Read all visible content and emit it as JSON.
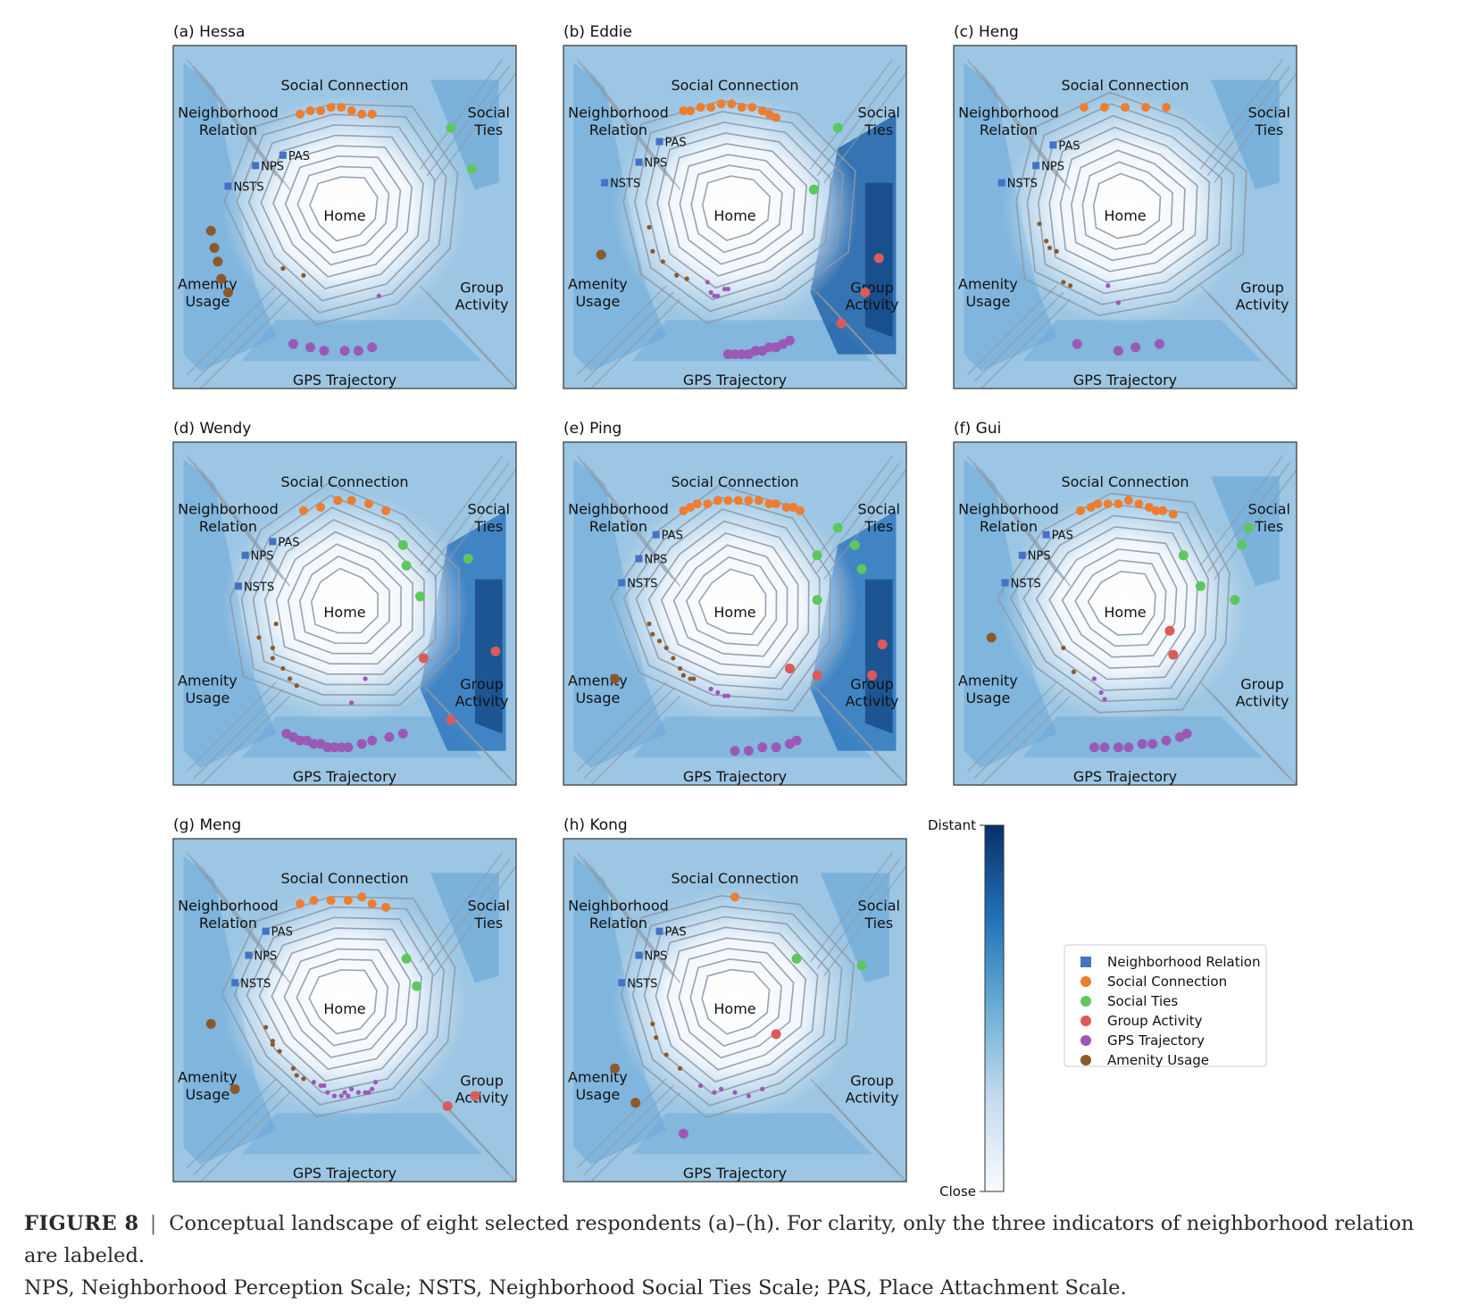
{
  "figure": {
    "label": "FIGURE 8",
    "separator": "|",
    "caption_line1": "Conceptual landscape of eight selected respondents (a)–(h). For clarity, only the three indicators of neighborhood relation are labeled.",
    "caption_line2": "NPS, Neighborhood Perception Scale; NSTS, Neighborhood Social Ties Scale; PAS, Place Attachment Scale."
  },
  "colors": {
    "Neighborhood Relation": "#4472c4",
    "Social Connection": "#ed7d31",
    "Social Ties": "#5cc85c",
    "Group Activity": "#dc5a5a",
    "GPS Trajectory": "#9b59b6",
    "Amenity Usage": "#8b5a2b"
  },
  "common_labels": {
    "social_connection": "Social Connection",
    "neighborhood_relation": [
      "Neighborhood",
      "Relation"
    ],
    "social_ties": [
      "Social",
      "Ties"
    ],
    "home": "Home",
    "amenity_usage": [
      "Amenity",
      "Usage"
    ],
    "group_activity": [
      "Group",
      "Activity"
    ],
    "gps_trajectory": "GPS Trajectory",
    "indicators": [
      "PAS",
      "NPS",
      "NSTS"
    ]
  },
  "colorbar": {
    "top_label": "Distant",
    "bottom_label": "Close",
    "colormap": [
      "#f7fbff",
      "#c6dbef",
      "#6baed6",
      "#2171b5",
      "#08306b"
    ]
  },
  "legend": [
    {
      "label": "Neighborhood Relation",
      "marker": "square"
    },
    {
      "label": "Social Connection",
      "marker": "circle"
    },
    {
      "label": "Social Ties",
      "marker": "circle"
    },
    {
      "label": "Group Activity",
      "marker": "circle"
    },
    {
      "label": "GPS Trajectory",
      "marker": "circle"
    },
    {
      "label": "Amenity Usage",
      "marker": "circle"
    }
  ],
  "chart_data": [
    {
      "type": "heatmap",
      "title": "(a) Hessa",
      "points": {
        "Social Connection": [
          [
            37,
            80
          ],
          [
            40,
            81
          ],
          [
            43,
            81
          ],
          [
            46,
            82
          ],
          [
            49,
            82
          ],
          [
            52,
            81
          ],
          [
            55,
            80
          ],
          [
            58,
            80
          ]
        ],
        "Social Ties": [
          [
            81,
            76
          ],
          [
            87,
            64
          ]
        ],
        "Amenity Usage": [
          [
            11,
            46
          ],
          [
            12,
            41
          ],
          [
            13,
            37
          ],
          [
            14,
            32
          ],
          [
            16,
            28
          ]
        ],
        "GPS Trajectory": [
          [
            35,
            13
          ],
          [
            40,
            12
          ],
          [
            44,
            11
          ],
          [
            50,
            11
          ],
          [
            54,
            11
          ],
          [
            58,
            12
          ]
        ],
        "Group Activity": [],
        "Inner Brown": [
          [
            32,
            35
          ],
          [
            38,
            33
          ]
        ],
        "Inner Purple": [
          [
            60,
            27
          ]
        ]
      },
      "indicators": {
        "PAS": [
          32,
          68
        ],
        "NPS": [
          24,
          65
        ],
        "NSTS": [
          16,
          59
        ]
      }
    },
    {
      "type": "heatmap",
      "title": "(b) Eddie",
      "points": {
        "Social Connection": [
          [
            35,
            81
          ],
          [
            37,
            81
          ],
          [
            40,
            82
          ],
          [
            43,
            82
          ],
          [
            46,
            83
          ],
          [
            49,
            83
          ],
          [
            52,
            82
          ],
          [
            55,
            82
          ],
          [
            58,
            81
          ],
          [
            60,
            80
          ],
          [
            62,
            79
          ]
        ],
        "Social Ties": [
          [
            80,
            76
          ],
          [
            73,
            58
          ]
        ],
        "Amenity Usage": [
          [
            11,
            39
          ]
        ],
        "GPS Trajectory": [
          [
            48,
            10
          ],
          [
            50,
            10
          ],
          [
            52,
            10
          ],
          [
            54,
            10
          ],
          [
            56,
            11
          ],
          [
            58,
            11
          ],
          [
            60,
            12
          ],
          [
            62,
            12
          ],
          [
            64,
            13
          ],
          [
            66,
            14
          ]
        ],
        "Group Activity": [
          [
            92,
            38
          ],
          [
            88,
            28
          ],
          [
            81,
            19
          ]
        ],
        "Inner Brown": [
          [
            25,
            47
          ],
          [
            26,
            40
          ],
          [
            29,
            37
          ],
          [
            33,
            33
          ],
          [
            36,
            32
          ]
        ],
        "Inner Purple": [
          [
            42,
            31
          ],
          [
            43,
            28
          ],
          [
            44,
            27
          ],
          [
            45,
            27
          ],
          [
            47,
            29
          ],
          [
            48,
            29
          ]
        ]
      },
      "indicators": {
        "PAS": [
          28,
          72
        ],
        "NPS": [
          22,
          66
        ],
        "NSTS": [
          12,
          60
        ]
      }
    },
    {
      "type": "heatmap",
      "title": "(c) Heng",
      "points": {
        "Social Connection": [
          [
            38,
            82
          ],
          [
            44,
            82
          ],
          [
            50,
            82
          ],
          [
            56,
            82
          ],
          [
            62,
            82
          ]
        ],
        "Social Ties": [],
        "Amenity Usage": [],
        "GPS Trajectory": [
          [
            36,
            13
          ],
          [
            48,
            11
          ],
          [
            53,
            12
          ],
          [
            60,
            13
          ]
        ],
        "Group Activity": [],
        "Inner Brown": [
          [
            25,
            48
          ],
          [
            27,
            43
          ],
          [
            28,
            41
          ],
          [
            30,
            40
          ],
          [
            32,
            31
          ],
          [
            34,
            30
          ]
        ],
        "Inner Purple": [
          [
            45,
            30
          ],
          [
            48,
            25
          ]
        ]
      },
      "indicators": {
        "PAS": [
          29,
          71
        ],
        "NPS": [
          24,
          65
        ],
        "NSTS": [
          14,
          60
        ]
      }
    },
    {
      "type": "heatmap",
      "title": "(d) Wendy",
      "points": {
        "Social Connection": [
          [
            38,
            80
          ],
          [
            43,
            81
          ],
          [
            48,
            83
          ],
          [
            52,
            83
          ],
          [
            57,
            82
          ],
          [
            62,
            80
          ]
        ],
        "Social Ties": [
          [
            67,
            70
          ],
          [
            68,
            64
          ],
          [
            72,
            55
          ],
          [
            86,
            66
          ]
        ],
        "Amenity Usage": [],
        "GPS Trajectory": [
          [
            33,
            15
          ],
          [
            35,
            14
          ],
          [
            37,
            13
          ],
          [
            39,
            13
          ],
          [
            41,
            12
          ],
          [
            43,
            12
          ],
          [
            45,
            11
          ],
          [
            47,
            11
          ],
          [
            49,
            11
          ],
          [
            51,
            11
          ],
          [
            55,
            12
          ],
          [
            58,
            13
          ],
          [
            63,
            14
          ],
          [
            67,
            15
          ]
        ],
        "Group Activity": [
          [
            73,
            37
          ],
          [
            94,
            39
          ],
          [
            81,
            19
          ]
        ],
        "Inner Brown": [
          [
            30,
            47
          ],
          [
            25,
            43
          ],
          [
            29,
            40
          ],
          [
            29,
            37
          ],
          [
            32,
            34
          ],
          [
            34,
            31
          ],
          [
            36,
            29
          ]
        ],
        "Inner Purple": [
          [
            56,
            31
          ],
          [
            52,
            24
          ]
        ]
      },
      "indicators": {
        "PAS": [
          29,
          71
        ],
        "NPS": [
          21,
          67
        ],
        "NSTS": [
          19,
          58
        ]
      }
    },
    {
      "type": "heatmap",
      "title": "(e) Ping",
      "points": {
        "Social Connection": [
          [
            35,
            80
          ],
          [
            37,
            81
          ],
          [
            39,
            82
          ],
          [
            42,
            82
          ],
          [
            45,
            83
          ],
          [
            48,
            83
          ],
          [
            51,
            83
          ],
          [
            54,
            83
          ],
          [
            57,
            83
          ],
          [
            60,
            82
          ],
          [
            62,
            82
          ],
          [
            65,
            81
          ],
          [
            67,
            81
          ],
          [
            69,
            80
          ]
        ],
        "Social Ties": [
          [
            80,
            75
          ],
          [
            85,
            70
          ],
          [
            87,
            63
          ],
          [
            74,
            67
          ],
          [
            74,
            54
          ]
        ],
        "Amenity Usage": [
          [
            15,
            31
          ]
        ],
        "GPS Trajectory": [
          [
            50,
            10
          ],
          [
            54,
            10
          ],
          [
            58,
            11
          ],
          [
            62,
            11
          ],
          [
            66,
            12
          ],
          [
            68,
            13
          ]
        ],
        "Group Activity": [
          [
            66,
            34
          ],
          [
            74,
            32
          ],
          [
            93,
            41
          ],
          [
            90,
            32
          ]
        ],
        "Inner Brown": [
          [
            25,
            47
          ],
          [
            26,
            44
          ],
          [
            28,
            42
          ],
          [
            30,
            40
          ],
          [
            32,
            37
          ],
          [
            34,
            34
          ],
          [
            35,
            32
          ],
          [
            37,
            31
          ],
          [
            38,
            31
          ]
        ],
        "Inner Purple": [
          [
            43,
            28
          ],
          [
            45,
            27
          ],
          [
            47,
            26
          ],
          [
            48,
            26
          ]
        ]
      },
      "indicators": {
        "PAS": [
          27,
          73
        ],
        "NPS": [
          22,
          66
        ],
        "NSTS": [
          17,
          59
        ]
      }
    },
    {
      "type": "heatmap",
      "title": "(f) Gui",
      "points": {
        "Social Connection": [
          [
            37,
            80
          ],
          [
            40,
            81
          ],
          [
            42,
            82
          ],
          [
            45,
            82
          ],
          [
            48,
            82
          ],
          [
            51,
            83
          ],
          [
            54,
            82
          ],
          [
            57,
            81
          ],
          [
            59,
            80
          ],
          [
            61,
            80
          ],
          [
            64,
            79
          ]
        ],
        "Social Ties": [
          [
            86,
            75
          ],
          [
            84,
            70
          ],
          [
            67,
            67
          ],
          [
            72,
            58
          ],
          [
            82,
            54
          ]
        ],
        "Amenity Usage": [
          [
            11,
            43
          ]
        ],
        "GPS Trajectory": [
          [
            41,
            11
          ],
          [
            44,
            11
          ],
          [
            48,
            11
          ],
          [
            51,
            11
          ],
          [
            55,
            12
          ],
          [
            58,
            12
          ],
          [
            62,
            13
          ],
          [
            66,
            14
          ],
          [
            68,
            15
          ]
        ],
        "Group Activity": [
          [
            63,
            45
          ],
          [
            64,
            38
          ]
        ],
        "Inner Brown": [
          [
            32,
            40
          ],
          [
            35,
            33
          ]
        ],
        "Inner Purple": [
          [
            41,
            31
          ],
          [
            43,
            27
          ],
          [
            44,
            25
          ]
        ]
      },
      "indicators": {
        "PAS": [
          27,
          73
        ],
        "NPS": [
          20,
          67
        ],
        "NSTS": [
          15,
          59
        ]
      }
    },
    {
      "type": "heatmap",
      "title": "(g) Meng",
      "points": {
        "Social Connection": [
          [
            37,
            81
          ],
          [
            41,
            82
          ],
          [
            46,
            82
          ],
          [
            51,
            82
          ],
          [
            55,
            83
          ],
          [
            58,
            81
          ],
          [
            62,
            80
          ]
        ],
        "Social Ties": [
          [
            68,
            65
          ],
          [
            71,
            57
          ]
        ],
        "Amenity Usage": [
          [
            11,
            46
          ],
          [
            18,
            27
          ]
        ],
        "GPS Trajectory": [],
        "Group Activity": [
          [
            88,
            25
          ],
          [
            80,
            22
          ]
        ],
        "Inner Brown": [
          [
            27,
            45
          ],
          [
            29,
            41
          ],
          [
            29,
            40
          ],
          [
            31,
            38
          ],
          [
            35,
            33
          ],
          [
            36,
            31
          ],
          [
            38,
            30
          ]
        ],
        "Inner Purple": [
          [
            41,
            29
          ],
          [
            43,
            28
          ],
          [
            44,
            28
          ],
          [
            45,
            26
          ],
          [
            47,
            25
          ],
          [
            49,
            25
          ],
          [
            50,
            26
          ],
          [
            51,
            25
          ],
          [
            52,
            27
          ],
          [
            54,
            26
          ],
          [
            56,
            26
          ],
          [
            57,
            26
          ],
          [
            58,
            27
          ],
          [
            59,
            29
          ]
        ]
      },
      "indicators": {
        "PAS": [
          27,
          73
        ],
        "NPS": [
          22,
          66
        ],
        "NSTS": [
          18,
          58
        ]
      }
    },
    {
      "type": "heatmap",
      "title": "(h) Kong",
      "points": {
        "Social Connection": [
          [
            50,
            83
          ]
        ],
        "Social Ties": [
          [
            68,
            65
          ],
          [
            87,
            63
          ]
        ],
        "Amenity Usage": [
          [
            15,
            33
          ],
          [
            21,
            23
          ]
        ],
        "GPS Trajectory": [
          [
            35,
            14
          ]
        ],
        "Group Activity": [
          [
            62,
            43
          ]
        ],
        "Inner Brown": [
          [
            26,
            46
          ],
          [
            27,
            42
          ],
          [
            30,
            37
          ],
          [
            34,
            33
          ]
        ],
        "Inner Purple": [
          [
            40,
            28
          ],
          [
            44,
            26
          ],
          [
            46,
            27
          ],
          [
            50,
            26
          ],
          [
            54,
            25
          ],
          [
            58,
            27
          ]
        ]
      },
      "indicators": {
        "PAS": [
          28,
          73
        ],
        "NPS": [
          22,
          66
        ],
        "NSTS": [
          17,
          58
        ]
      }
    }
  ]
}
